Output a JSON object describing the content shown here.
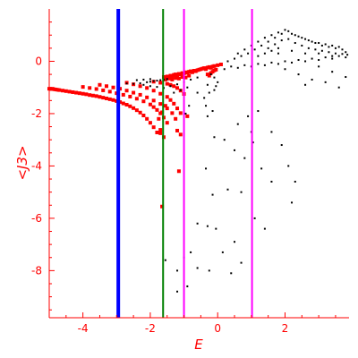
{
  "chart_data": {
    "type": "scatter",
    "title": "",
    "xlabel": "E",
    "ylabel": "<J3>",
    "xlim": [
      -5.0,
      3.9
    ],
    "ylim": [
      -9.8,
      2.0
    ],
    "grid": false,
    "x_ticks": [
      -4,
      -2,
      0,
      2
    ],
    "x_tick_labels": [
      "-4",
      "-2",
      "0",
      "2"
    ],
    "y_ticks": [
      0,
      -2,
      -4,
      -6,
      -8
    ],
    "y_tick_labels": [
      "0",
      "-2",
      "-4",
      "-6",
      "-8"
    ],
    "colors": {
      "axis": "#ff0000",
      "red_series": "#ff0000",
      "black_series": "#000000"
    },
    "vertical_lines": [
      {
        "x": -2.95,
        "color": "#0000ff",
        "width": "thick"
      },
      {
        "x": -1.62,
        "color": "#008000",
        "width": "normal"
      },
      {
        "x": -1.0,
        "color": "#ff00ff",
        "width": "normal"
      },
      {
        "x": 1.02,
        "color": "#ff00ff",
        "width": "normal"
      }
    ],
    "series": [
      {
        "color": "#ff0000",
        "marker": "square",
        "points": [
          [
            -5.0,
            -1.05
          ],
          [
            -4.95,
            -1.06
          ],
          [
            -4.9,
            -1.05
          ],
          [
            -4.85,
            -1.07
          ],
          [
            -4.8,
            -1.08
          ],
          [
            -4.75,
            -1.09
          ],
          [
            -4.7,
            -1.1
          ],
          [
            -4.6,
            -1.12
          ],
          [
            -4.5,
            -1.14
          ],
          [
            -4.4,
            -1.16
          ],
          [
            -4.3,
            -1.18
          ],
          [
            -4.2,
            -1.2
          ],
          [
            -4.1,
            -1.22
          ],
          [
            -4.0,
            -1.24
          ],
          [
            -3.9,
            -1.26
          ],
          [
            -3.8,
            -1.29
          ],
          [
            -3.7,
            -1.31
          ],
          [
            -3.6,
            -1.33
          ],
          [
            -3.5,
            -1.36
          ],
          [
            -3.4,
            -1.39
          ],
          [
            -3.3,
            -1.42
          ],
          [
            -3.2,
            -1.45
          ],
          [
            -3.1,
            -1.48
          ],
          [
            -3.0,
            -1.52
          ],
          [
            -2.9,
            -1.56
          ],
          [
            -2.8,
            -1.61
          ],
          [
            -2.7,
            -1.66
          ],
          [
            -2.6,
            -1.72
          ],
          [
            -2.5,
            -1.79
          ],
          [
            -2.4,
            -1.87
          ],
          [
            -2.3,
            -1.96
          ],
          [
            -2.2,
            -2.07
          ],
          [
            -2.1,
            -2.2
          ],
          [
            -2.0,
            -2.35
          ],
          [
            -1.9,
            -2.52
          ],
          [
            -1.8,
            -2.72
          ],
          [
            -4.0,
            -0.98
          ],
          [
            -3.8,
            -1.02
          ],
          [
            -3.6,
            -1.06
          ],
          [
            -3.4,
            -1.11
          ],
          [
            -3.2,
            -1.16
          ],
          [
            -3.0,
            -1.22
          ],
          [
            -2.8,
            -1.28
          ],
          [
            -2.6,
            -1.35
          ],
          [
            -2.4,
            -1.43
          ],
          [
            -2.2,
            -1.53
          ],
          [
            -2.0,
            -1.65
          ],
          [
            -1.9,
            -1.75
          ],
          [
            -1.8,
            -1.86
          ],
          [
            -1.7,
            -1.99
          ],
          [
            -1.6,
            -2.15
          ],
          [
            -1.5,
            -2.35
          ],
          [
            -3.5,
            -0.9
          ],
          [
            -3.3,
            -0.95
          ],
          [
            -3.1,
            -1.0
          ],
          [
            -2.9,
            -1.05
          ],
          [
            -2.7,
            -1.12
          ],
          [
            -2.5,
            -1.2
          ],
          [
            -2.3,
            -1.28
          ],
          [
            -2.1,
            -1.38
          ],
          [
            -1.9,
            -1.5
          ],
          [
            -1.7,
            -1.63
          ],
          [
            -1.5,
            -1.8
          ],
          [
            -1.35,
            -1.98
          ],
          [
            -1.25,
            -2.2
          ],
          [
            -2.7,
            -0.82
          ],
          [
            -2.5,
            -0.88
          ],
          [
            -2.3,
            -0.95
          ],
          [
            -2.1,
            -1.02
          ],
          [
            -1.9,
            -1.12
          ],
          [
            -1.7,
            -1.24
          ],
          [
            -1.5,
            -1.36
          ],
          [
            -1.4,
            -1.48
          ],
          [
            -1.3,
            -1.62
          ],
          [
            -1.2,
            -1.8
          ],
          [
            -1.1,
            -1.98
          ],
          [
            -1.9,
            -0.78
          ],
          [
            -1.7,
            -0.82
          ],
          [
            -1.5,
            -0.86
          ],
          [
            -1.4,
            -0.9
          ],
          [
            -1.3,
            -0.95
          ],
          [
            -1.2,
            -1.02
          ],
          [
            -1.1,
            -1.12
          ],
          [
            -1.0,
            -1.25
          ],
          [
            -1.6,
            -0.6
          ],
          [
            -1.5,
            -0.58
          ],
          [
            -1.45,
            -0.6
          ],
          [
            -1.4,
            -0.55
          ],
          [
            -1.35,
            -0.58
          ],
          [
            -1.3,
            -0.52
          ],
          [
            -1.25,
            -0.5
          ],
          [
            -1.2,
            -0.55
          ],
          [
            -1.15,
            -0.48
          ],
          [
            -1.1,
            -0.5
          ],
          [
            -1.05,
            -0.45
          ],
          [
            -1.0,
            -0.46
          ],
          [
            -0.95,
            -0.42
          ],
          [
            -0.9,
            -0.44
          ],
          [
            -0.85,
            -0.4
          ],
          [
            -0.8,
            -0.38
          ],
          [
            -0.75,
            -0.42
          ],
          [
            -0.7,
            -0.36
          ],
          [
            -0.65,
            -0.38
          ],
          [
            -0.6,
            -0.34
          ],
          [
            -0.55,
            -0.32
          ],
          [
            -0.5,
            -0.3
          ],
          [
            -0.45,
            -0.28
          ],
          [
            -0.4,
            -0.26
          ],
          [
            -0.35,
            -0.3
          ],
          [
            -0.3,
            -0.24
          ],
          [
            -0.25,
            -0.22
          ],
          [
            -0.2,
            -0.25
          ],
          [
            -0.15,
            -0.2
          ],
          [
            -0.1,
            -0.18
          ],
          [
            0.0,
            -0.15
          ],
          [
            0.1,
            -0.12
          ],
          [
            -1.55,
            -0.7
          ],
          [
            -1.45,
            -0.66
          ],
          [
            -1.35,
            -0.7
          ],
          [
            -1.25,
            -0.64
          ],
          [
            -1.15,
            -0.66
          ],
          [
            -1.05,
            -0.6
          ],
          [
            -0.95,
            -0.62
          ],
          [
            -0.85,
            -0.55
          ],
          [
            -0.3,
            -0.5
          ],
          [
            -0.25,
            -0.55
          ],
          [
            -0.2,
            -0.45
          ],
          [
            -0.15,
            -0.4
          ],
          [
            -0.1,
            -0.35
          ],
          [
            -0.05,
            -0.32
          ],
          [
            -1.7,
            -2.75
          ],
          [
            -1.7,
            -2.62
          ],
          [
            -1.6,
            -2.9
          ],
          [
            -1.65,
            -5.55
          ],
          [
            -1.2,
            -2.65
          ],
          [
            -1.1,
            -2.8
          ],
          [
            -1.15,
            -4.2
          ],
          [
            -0.9,
            -2.1
          ],
          [
            -1.75,
            -2.2
          ],
          [
            -1.65,
            -1.95
          ],
          [
            -1.55,
            -1.7
          ]
        ]
      },
      {
        "color": "#000000",
        "marker": "dot",
        "points": [
          [
            -2.7,
            -0.85
          ],
          [
            -2.5,
            -0.86
          ],
          [
            -2.3,
            -0.84
          ],
          [
            -2.1,
            -0.8
          ],
          [
            -2.0,
            -0.78
          ],
          [
            -1.9,
            -0.75
          ],
          [
            -1.8,
            -0.74
          ],
          [
            -1.7,
            -0.72
          ],
          [
            -1.6,
            -0.7
          ],
          [
            -1.5,
            -0.68
          ],
          [
            -2.2,
            -0.9
          ],
          [
            -2.0,
            -0.95
          ],
          [
            -1.8,
            -0.98
          ],
          [
            -1.6,
            -1.02
          ],
          [
            -1.4,
            -0.95
          ],
          [
            -1.2,
            -0.88
          ],
          [
            -1.0,
            -0.8
          ],
          [
            -0.8,
            -0.7
          ],
          [
            -0.6,
            -0.62
          ],
          [
            -1.3,
            -1.2
          ],
          [
            -1.1,
            -1.1
          ],
          [
            -0.9,
            -1.0
          ],
          [
            -2.4,
            -0.72
          ],
          [
            -2.2,
            -0.7
          ],
          [
            -2.0,
            -0.68
          ],
          [
            -0.2,
            -0.5
          ],
          [
            -0.1,
            -0.62
          ],
          [
            0.0,
            -0.8
          ],
          [
            -0.05,
            -0.95
          ],
          [
            -0.25,
            -1.2
          ],
          [
            -0.15,
            -1.9
          ],
          [
            -0.35,
            -1.7
          ],
          [
            -0.6,
            -1.2
          ],
          [
            -0.3,
            -0.9
          ],
          [
            -0.4,
            -1.4
          ],
          [
            -0.1,
            -1.1
          ],
          [
            0.2,
            -0.3
          ],
          [
            0.4,
            -0.2
          ],
          [
            0.6,
            -0.25
          ],
          [
            0.8,
            -0.15
          ],
          [
            1.0,
            -0.2
          ],
          [
            1.2,
            -0.1
          ],
          [
            1.4,
            -0.15
          ],
          [
            1.6,
            -0.05
          ],
          [
            1.8,
            -0.1
          ],
          [
            2.0,
            0.0
          ],
          [
            2.2,
            -0.05
          ],
          [
            2.4,
            0.05
          ],
          [
            2.6,
            0.0
          ],
          [
            2.8,
            0.1
          ],
          [
            3.0,
            0.05
          ],
          [
            3.2,
            0.15
          ],
          [
            3.4,
            0.1
          ],
          [
            3.6,
            0.2
          ],
          [
            3.8,
            0.15
          ],
          [
            0.3,
            0.0
          ],
          [
            0.5,
            0.1
          ],
          [
            0.7,
            0.2
          ],
          [
            0.9,
            0.3
          ],
          [
            1.1,
            0.45
          ],
          [
            1.3,
            0.6
          ],
          [
            1.5,
            0.75
          ],
          [
            1.7,
            0.9
          ],
          [
            1.9,
            1.05
          ],
          [
            2.1,
            1.15
          ],
          [
            2.3,
            1.0
          ],
          [
            2.5,
            0.9
          ],
          [
            2.7,
            0.8
          ],
          [
            2.9,
            0.7
          ],
          [
            3.1,
            0.6
          ],
          [
            3.3,
            0.55
          ],
          [
            3.5,
            0.5
          ],
          [
            3.7,
            0.45
          ],
          [
            0.6,
            0.3
          ],
          [
            0.8,
            0.45
          ],
          [
            1.0,
            0.6
          ],
          [
            1.2,
            0.75
          ],
          [
            1.4,
            0.9
          ],
          [
            1.6,
            1.0
          ],
          [
            1.8,
            1.1
          ],
          [
            2.0,
            1.2
          ],
          [
            2.2,
            1.05
          ],
          [
            2.4,
            0.95
          ],
          [
            2.6,
            0.85
          ],
          [
            2.8,
            0.75
          ],
          [
            3.0,
            0.7
          ],
          [
            3.2,
            0.65
          ],
          [
            3.4,
            0.6
          ],
          [
            3.6,
            0.55
          ],
          [
            1.5,
            0.5
          ],
          [
            1.7,
            0.65
          ],
          [
            1.9,
            0.8
          ],
          [
            2.1,
            0.85
          ],
          [
            2.3,
            0.7
          ],
          [
            2.5,
            0.6
          ],
          [
            2.7,
            0.5
          ],
          [
            2.9,
            0.45
          ],
          [
            3.1,
            0.4
          ],
          [
            3.3,
            0.35
          ],
          [
            3.5,
            0.3
          ],
          [
            3.7,
            0.28
          ],
          [
            3.85,
            0.25
          ],
          [
            1.2,
            0.2
          ],
          [
            1.4,
            0.3
          ],
          [
            1.6,
            0.4
          ],
          [
            1.8,
            0.5
          ],
          [
            2.0,
            -0.3
          ],
          [
            2.4,
            -0.5
          ],
          [
            2.8,
            -0.7
          ],
          [
            3.2,
            -0.8
          ],
          [
            3.6,
            -1.0
          ],
          [
            3.8,
            -0.6
          ],
          [
            3.4,
            -0.4
          ],
          [
            3.0,
            -0.2
          ],
          [
            2.6,
            -0.9
          ],
          [
            1.8,
            0.3
          ],
          [
            2.2,
            0.4
          ],
          [
            2.6,
            0.3
          ],
          [
            3.0,
            0.3
          ],
          [
            3.4,
            0.2
          ],
          [
            3.8,
            0.35
          ],
          [
            -0.3,
            -2.1
          ],
          [
            -0.1,
            -2.9
          ],
          [
            0.2,
            -3.0
          ],
          [
            0.5,
            -3.4
          ],
          [
            0.8,
            -3.7
          ],
          [
            0.6,
            -2.4
          ],
          [
            0.9,
            -2.1
          ],
          [
            1.2,
            -1.9
          ],
          [
            1.6,
            -2.7
          ],
          [
            1.9,
            -3.2
          ],
          [
            2.1,
            -4.0
          ],
          [
            2.3,
            -4.6
          ],
          [
            2.2,
            -5.4
          ],
          [
            -0.35,
            -4.1
          ],
          [
            -0.15,
            -5.1
          ],
          [
            0.3,
            -4.9
          ],
          [
            0.7,
            -5.0
          ],
          [
            1.1,
            -6.0
          ],
          [
            1.4,
            -6.4
          ],
          [
            1.6,
            -4.6
          ],
          [
            1.3,
            -4.1
          ],
          [
            -0.6,
            -6.2
          ],
          [
            -0.3,
            -6.3
          ],
          [
            -0.05,
            -6.4
          ],
          [
            0.15,
            -7.3
          ],
          [
            0.5,
            -6.9
          ],
          [
            0.7,
            -7.7
          ],
          [
            0.4,
            -8.1
          ],
          [
            -0.8,
            -7.3
          ],
          [
            -1.0,
            -7.5
          ],
          [
            -1.2,
            -8.0
          ],
          [
            -0.6,
            -7.9
          ],
          [
            -0.25,
            -8.0
          ],
          [
            -1.55,
            -7.6
          ],
          [
            -0.9,
            -8.6
          ],
          [
            -1.2,
            -8.8
          ],
          [
            -0.95,
            -2.0
          ],
          [
            -0.85,
            -1.7
          ],
          [
            1.0,
            -2.7
          ],
          [
            1.05,
            -3.1
          ]
        ]
      }
    ]
  }
}
